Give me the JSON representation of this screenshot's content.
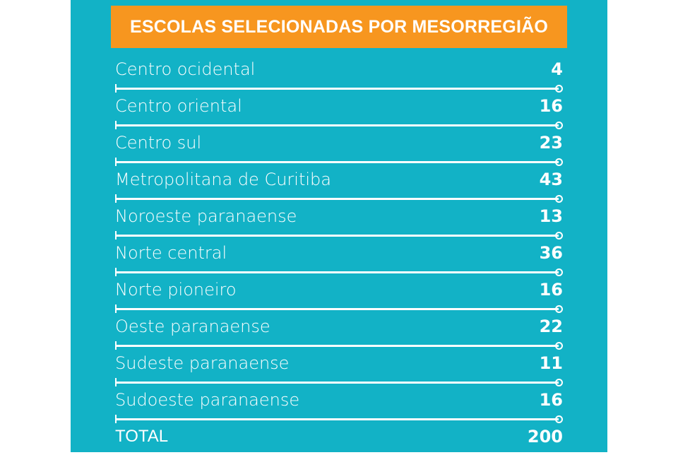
{
  "title": "ESCOLAS SELECIONADAS POR MESORREGIÃO",
  "rows": [
    {
      "label": "Centro ocidental",
      "value": "4"
    },
    {
      "label": "Centro oriental",
      "value": "16"
    },
    {
      "label": "Centro sul",
      "value": "23"
    },
    {
      "label": "Metropolitana de Curitiba",
      "value": "43"
    },
    {
      "label": "Noroeste paranaense",
      "value": "13"
    },
    {
      "label": "Norte central",
      "value": "36"
    },
    {
      "label": "Norte pioneiro",
      "value": "16"
    },
    {
      "label": "Oeste paranaense",
      "value": "22"
    },
    {
      "label": "Sudeste paranaense",
      "value": "11"
    },
    {
      "label": "Sudoeste paranaense",
      "value": "16"
    }
  ],
  "total": {
    "label": "TOTAL",
    "value": "200"
  },
  "colors": {
    "background": "#12b2c6",
    "header": "#f7961f",
    "text": "#ffffff"
  }
}
